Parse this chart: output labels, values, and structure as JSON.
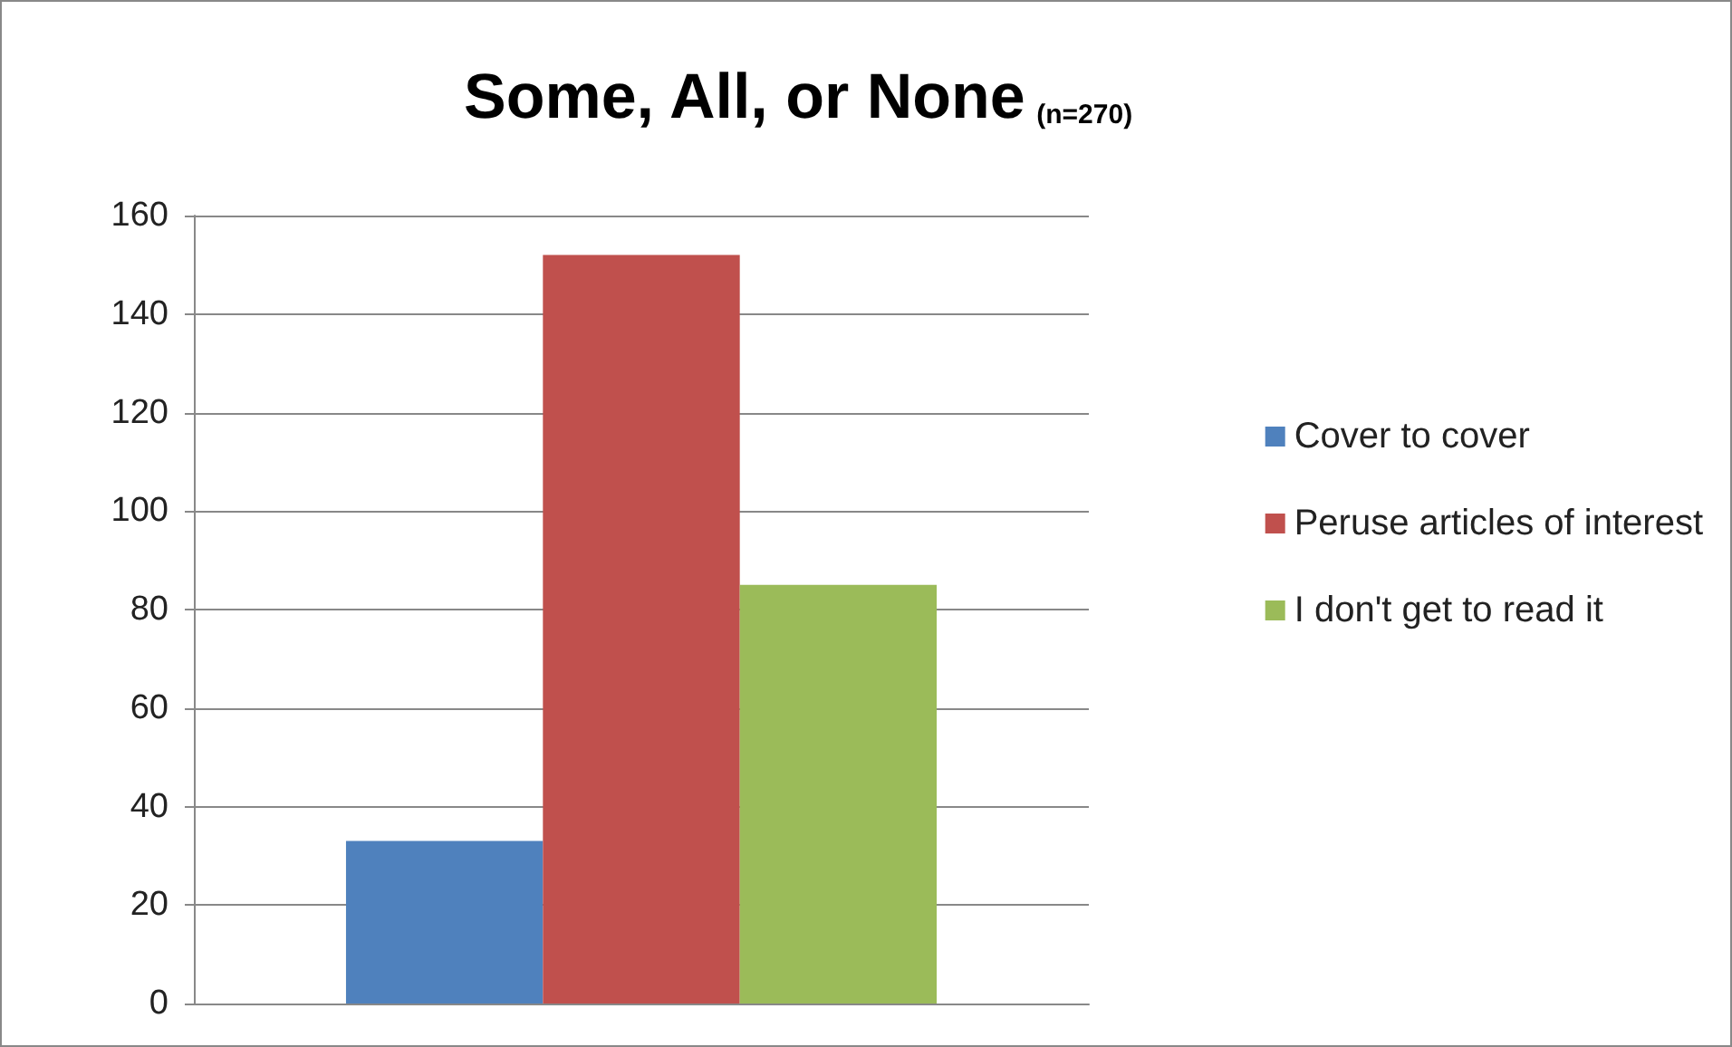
{
  "chart_data": {
    "type": "bar",
    "title": "Some, All, or None",
    "subtitle": "(n=270)",
    "categories": [
      null
    ],
    "series": [
      {
        "name": "Cover to cover",
        "color": "#4f81bd",
        "values": [
          33
        ]
      },
      {
        "name": "Peruse articles of interest",
        "color": "#c0504d",
        "values": [
          152
        ]
      },
      {
        "name": "I don't get to read it",
        "color": "#9bbb59",
        "values": [
          85
        ]
      }
    ],
    "ylim": [
      0,
      160
    ],
    "yticks": [
      0,
      20,
      40,
      60,
      80,
      100,
      120,
      140,
      160
    ],
    "grid": true,
    "legend": "right"
  }
}
